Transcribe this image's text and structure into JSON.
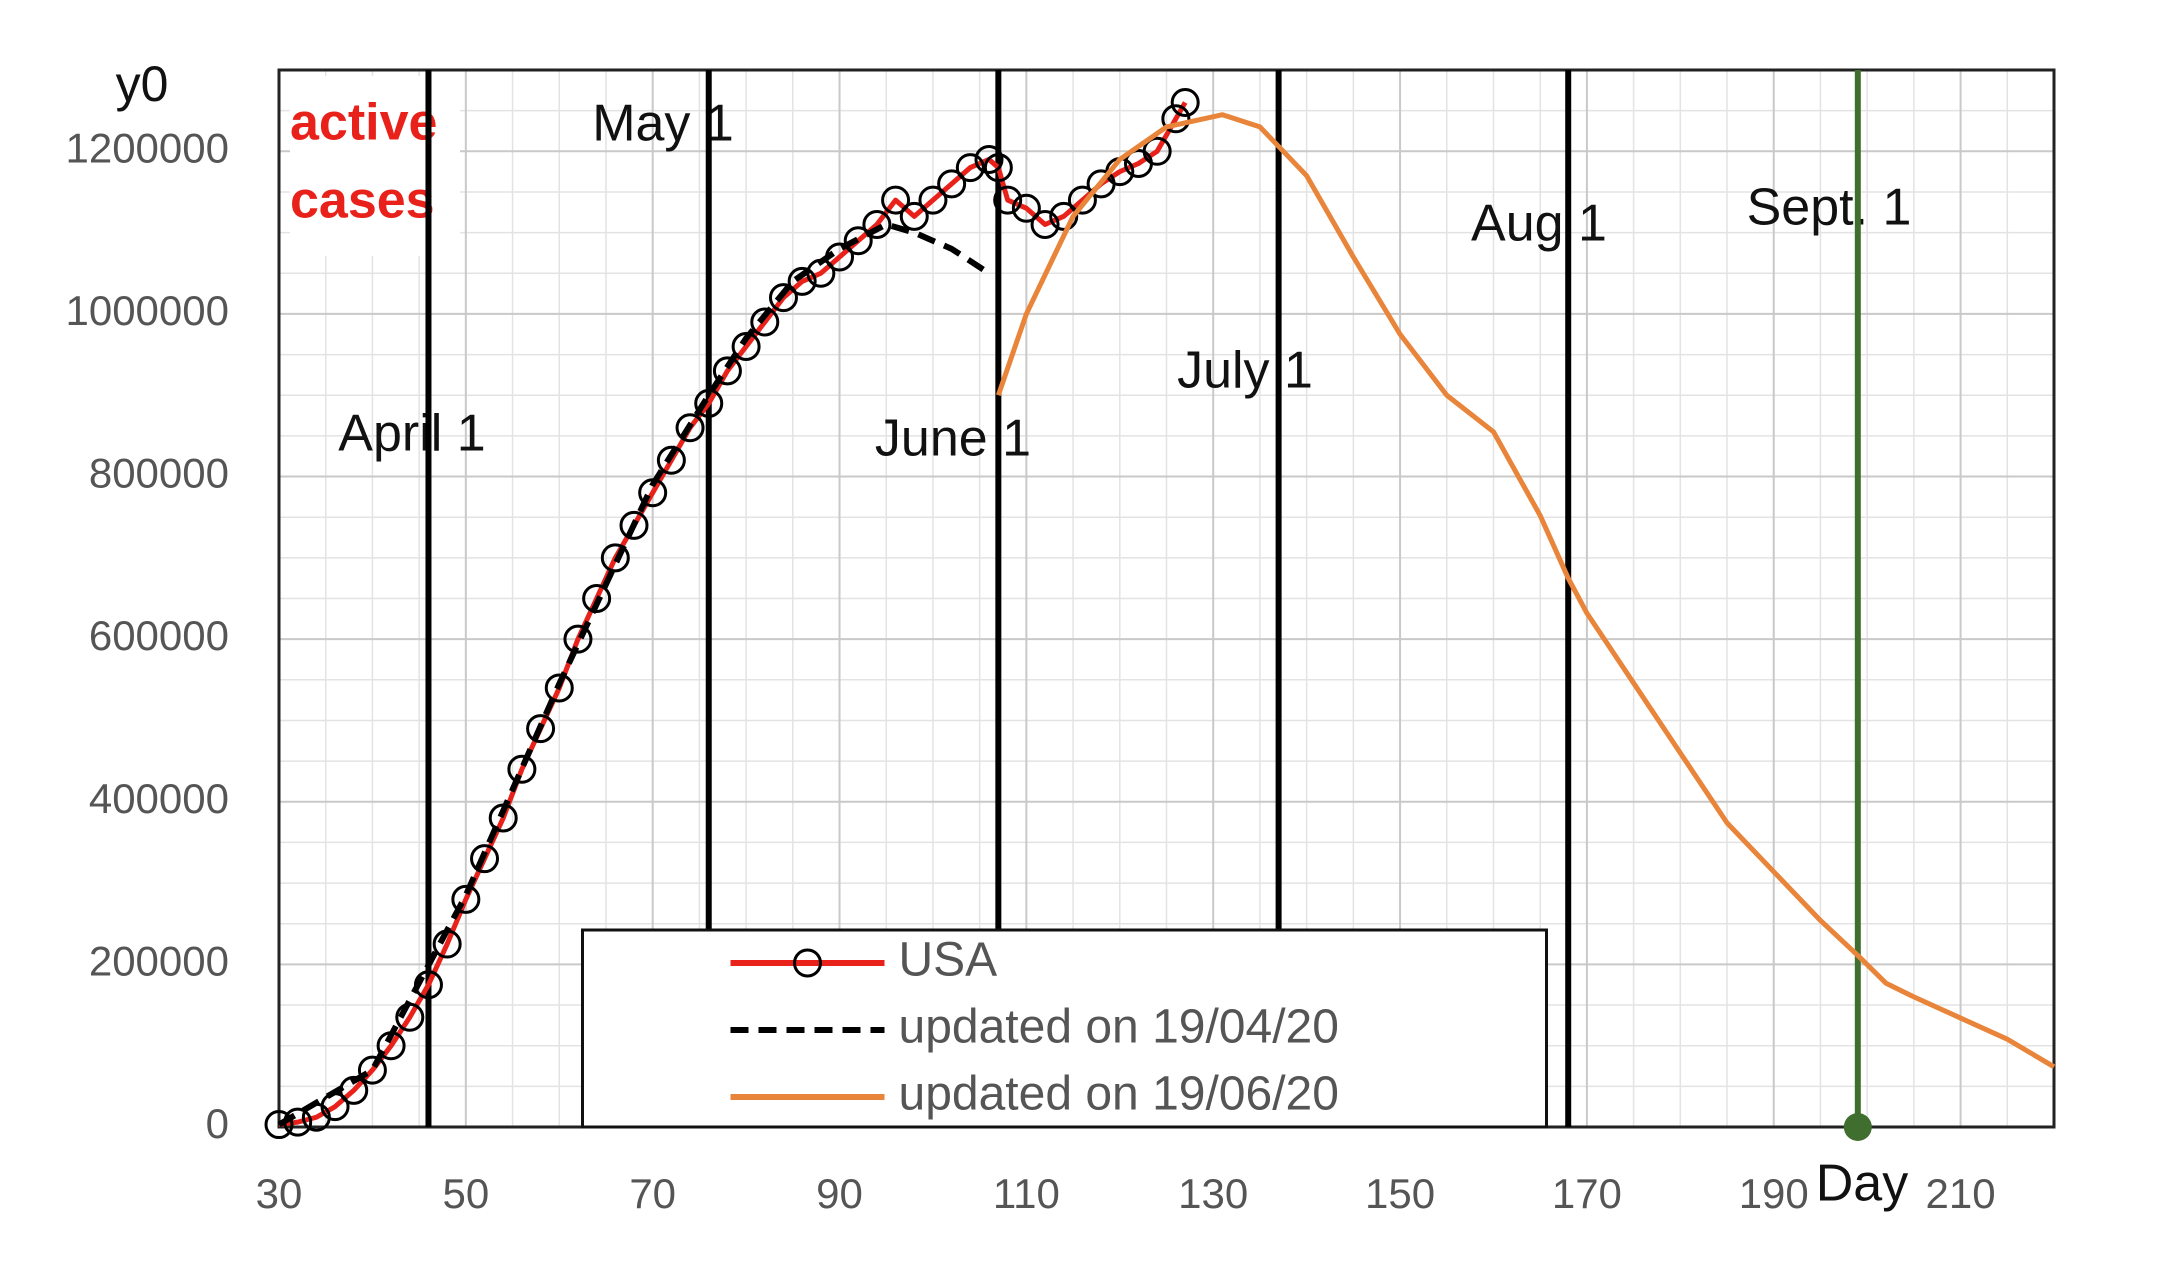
{
  "chart_data": {
    "type": "line",
    "ylabel": "y0",
    "xlabel": "Day",
    "highlight": [
      "active",
      "cases"
    ],
    "highlight_color": "#e8221b",
    "xlim": [
      30,
      220
    ],
    "xticks": [
      30,
      50,
      70,
      90,
      110,
      130,
      150,
      170,
      190,
      210
    ],
    "ylim": [
      0,
      1300000
    ],
    "yticks": [
      0,
      200000,
      400000,
      600000,
      800000,
      1000000,
      1200000
    ],
    "grid": true,
    "minor_grid": true,
    "legend": "bottom-center",
    "markers": [
      {
        "x": 46,
        "label": "April 1",
        "color": "#000000"
      },
      {
        "x": 76,
        "label": "May 1",
        "color": "#000000"
      },
      {
        "x": 107,
        "label": "June 1",
        "color": "#000000"
      },
      {
        "x": 137,
        "label": "July 1",
        "color": "#000000"
      },
      {
        "x": 168,
        "label": "Aug 1",
        "color": "#000000"
      },
      {
        "x": 199,
        "label": "Sept. 1",
        "color": "#3f6e2e"
      }
    ],
    "series": [
      {
        "name": "USA",
        "color": "#e8221b",
        "marker": "circle",
        "marker_color": "#000000",
        "x": [
          30,
          32,
          34,
          36,
          38,
          40,
          42,
          44,
          46,
          48,
          50,
          52,
          54,
          56,
          58,
          60,
          62,
          64,
          66,
          68,
          70,
          72,
          74,
          76,
          78,
          80,
          82,
          84,
          86,
          88,
          90,
          92,
          94,
          96,
          98,
          100,
          102,
          104,
          106,
          107,
          108,
          110,
          112,
          114,
          116,
          118,
          120,
          122,
          124,
          126,
          127
        ],
        "values": [
          3000,
          6000,
          12000,
          25000,
          45000,
          70000,
          100000,
          135000,
          175000,
          225000,
          280000,
          330000,
          380000,
          440000,
          490000,
          540000,
          600000,
          650000,
          700000,
          740000,
          780000,
          820000,
          860000,
          890000,
          930000,
          960000,
          990000,
          1020000,
          1040000,
          1050000,
          1070000,
          1090000,
          1110000,
          1140000,
          1120000,
          1140000,
          1160000,
          1180000,
          1190000,
          1180000,
          1140000,
          1130000,
          1110000,
          1120000,
          1140000,
          1160000,
          1175000,
          1185000,
          1200000,
          1240000,
          1260000
        ]
      },
      {
        "name": "updated on 19/04/20",
        "color": "#000000",
        "dash": true,
        "x": [
          30,
          40,
          50,
          60,
          70,
          76,
          80,
          85,
          90,
          95,
          98,
          102,
          106
        ],
        "values": [
          3000,
          70000,
          285000,
          545000,
          790000,
          900000,
          970000,
          1040000,
          1080000,
          1110000,
          1100000,
          1080000,
          1050000
        ]
      },
      {
        "name": "updated on 19/06/20",
        "color": "#e8853a",
        "x": [
          107,
          110,
          115,
          120,
          125,
          131,
          135,
          140,
          145,
          150,
          155,
          160,
          165,
          168,
          170,
          175,
          180,
          185,
          190,
          195,
          199,
          202,
          205,
          210,
          215,
          220
        ],
        "values": [
          900000,
          1000000,
          1120000,
          1190000,
          1230000,
          1245000,
          1230000,
          1170000,
          1070000,
          975000,
          900000,
          855000,
          752000,
          675000,
          632000,
          546000,
          460000,
          374000,
          314000,
          254000,
          211000,
          177000,
          160000,
          134000,
          108000,
          74000
        ]
      }
    ]
  }
}
